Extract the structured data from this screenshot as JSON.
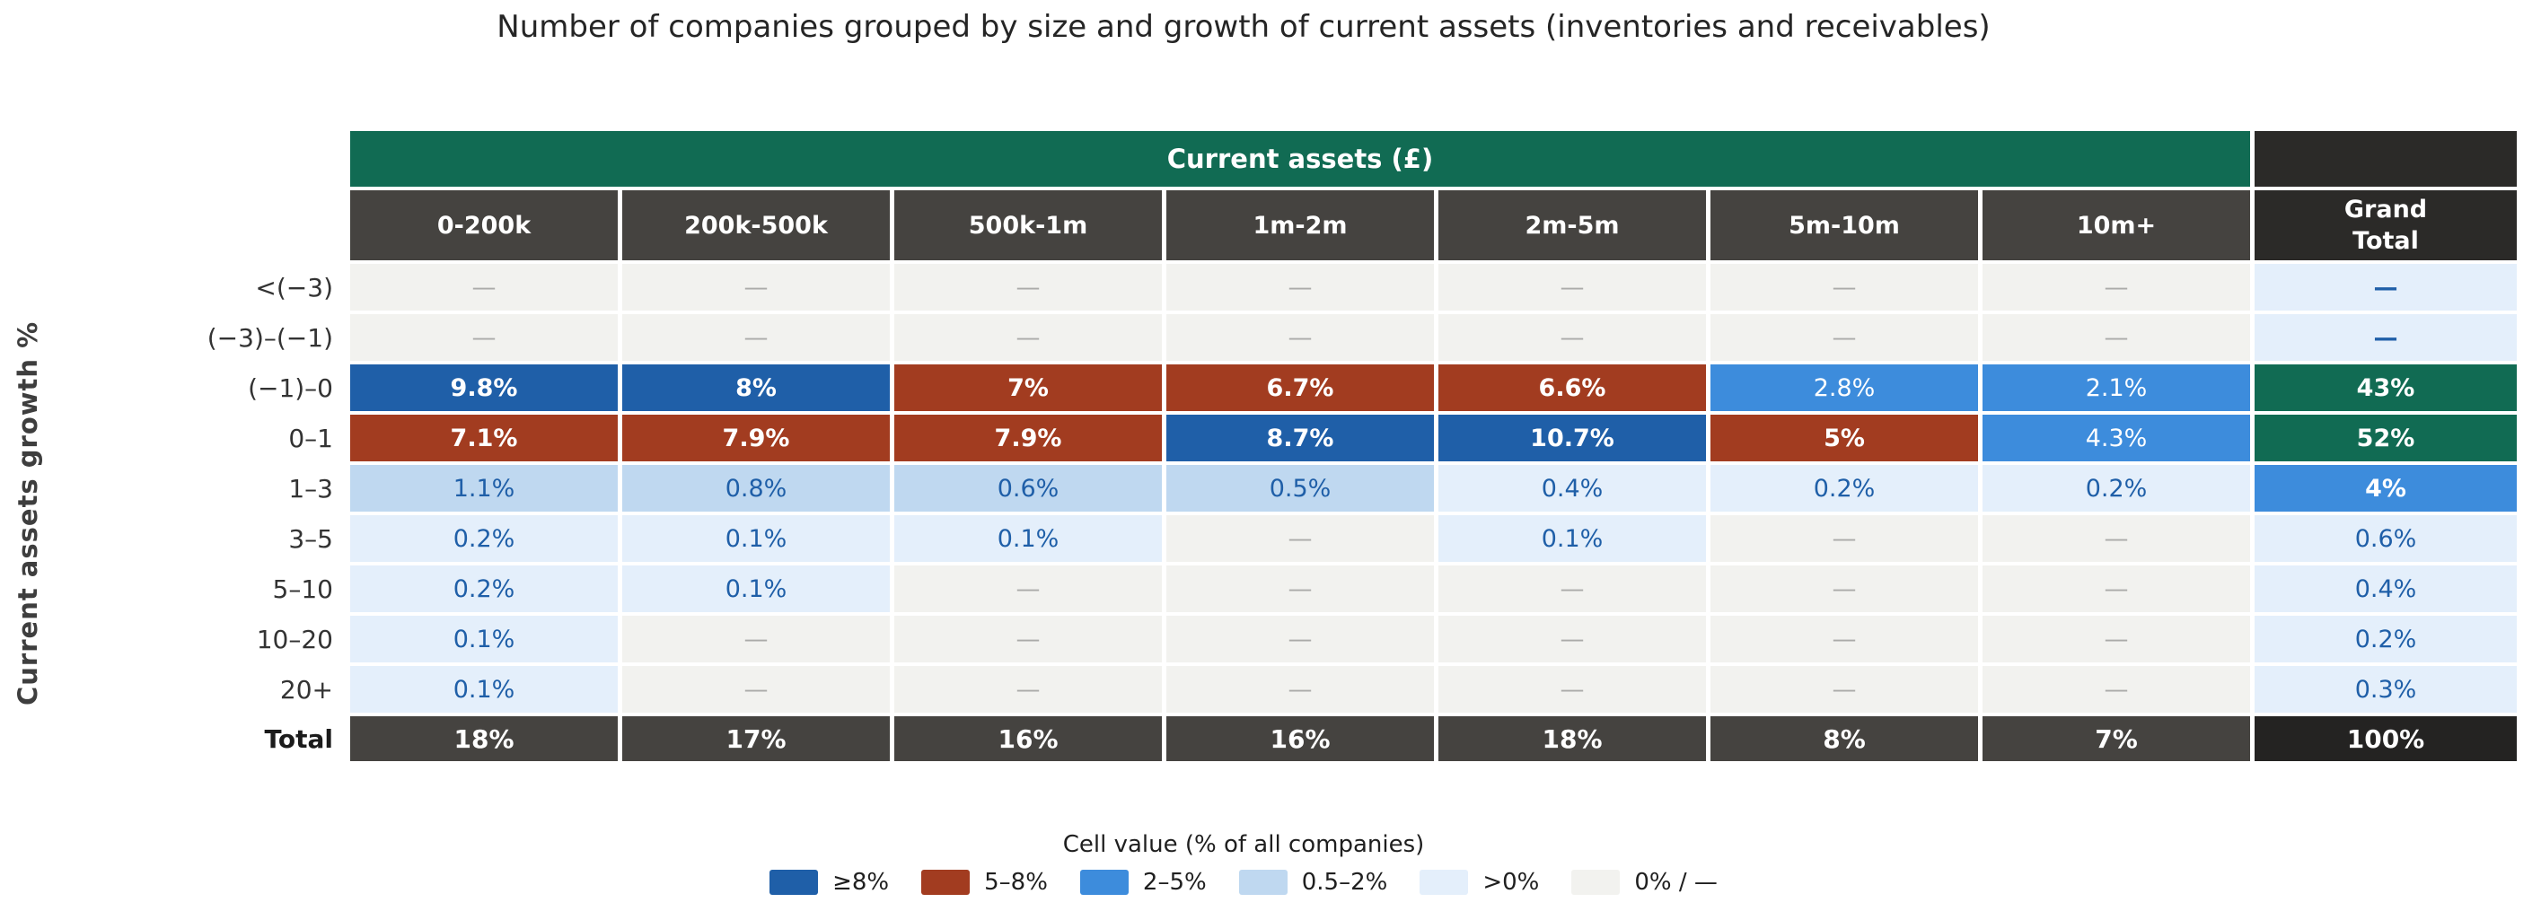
{
  "title": "Number of companies grouped by size and growth of current assets (inventories and receivables)",
  "y_axis_label": "Current assets growth %",
  "table": {
    "group_header": "Current assets (£)",
    "columns": [
      "0-200k",
      "200k-500k",
      "500k-1m",
      "1m-2m",
      "2m-5m",
      "5m-10m",
      "10m+"
    ],
    "grand_total_header": {
      "line1": "Grand",
      "line2": "Total"
    },
    "rows": [
      {
        "label": "<(−3)",
        "cells": [
          {
            "value": "—",
            "cat": "zero"
          },
          {
            "value": "—",
            "cat": "zero"
          },
          {
            "value": "—",
            "cat": "zero"
          },
          {
            "value": "—",
            "cat": "zero"
          },
          {
            "value": "—",
            "cat": "zero"
          },
          {
            "value": "—",
            "cat": "zero"
          },
          {
            "value": "—",
            "cat": "zero"
          },
          {
            "value": "—",
            "cat": "gt0",
            "bold": true
          }
        ]
      },
      {
        "label": "(−3)–(−1)",
        "cells": [
          {
            "value": "—",
            "cat": "zero"
          },
          {
            "value": "—",
            "cat": "zero"
          },
          {
            "value": "—",
            "cat": "zero"
          },
          {
            "value": "—",
            "cat": "zero"
          },
          {
            "value": "—",
            "cat": "zero"
          },
          {
            "value": "—",
            "cat": "zero"
          },
          {
            "value": "—",
            "cat": "zero"
          },
          {
            "value": "—",
            "cat": "gt0",
            "bold": true
          }
        ]
      },
      {
        "label": "(−1)–0",
        "cells": [
          {
            "value": "9.8%",
            "cat": "ge8"
          },
          {
            "value": "8%",
            "cat": "ge8"
          },
          {
            "value": "7%",
            "cat": "58"
          },
          {
            "value": "6.7%",
            "cat": "58"
          },
          {
            "value": "6.6%",
            "cat": "58"
          },
          {
            "value": "2.8%",
            "cat": "25"
          },
          {
            "value": "2.1%",
            "cat": "25"
          },
          {
            "value": "43%",
            "cat": "green"
          }
        ]
      },
      {
        "label": "0–1",
        "cells": [
          {
            "value": "7.1%",
            "cat": "58"
          },
          {
            "value": "7.9%",
            "cat": "58"
          },
          {
            "value": "7.9%",
            "cat": "58"
          },
          {
            "value": "8.7%",
            "cat": "ge8"
          },
          {
            "value": "10.7%",
            "cat": "ge8"
          },
          {
            "value": "5%",
            "cat": "58"
          },
          {
            "value": "4.3%",
            "cat": "25"
          },
          {
            "value": "52%",
            "cat": "green"
          }
        ]
      },
      {
        "label": "1–3",
        "cells": [
          {
            "value": "1.1%",
            "cat": "052"
          },
          {
            "value": "0.8%",
            "cat": "052"
          },
          {
            "value": "0.6%",
            "cat": "052"
          },
          {
            "value": "0.5%",
            "cat": "052"
          },
          {
            "value": "0.4%",
            "cat": "gt0"
          },
          {
            "value": "0.2%",
            "cat": "gt0"
          },
          {
            "value": "0.2%",
            "cat": "gt0"
          },
          {
            "value": "4%",
            "cat": "25",
            "bold": true
          }
        ]
      },
      {
        "label": "3–5",
        "cells": [
          {
            "value": "0.2%",
            "cat": "gt0"
          },
          {
            "value": "0.1%",
            "cat": "gt0"
          },
          {
            "value": "0.1%",
            "cat": "gt0"
          },
          {
            "value": "—",
            "cat": "zero"
          },
          {
            "value": "0.1%",
            "cat": "gt0"
          },
          {
            "value": "—",
            "cat": "zero"
          },
          {
            "value": "—",
            "cat": "zero"
          },
          {
            "value": "0.6%",
            "cat": "gt0"
          }
        ]
      },
      {
        "label": "5–10",
        "cells": [
          {
            "value": "0.2%",
            "cat": "gt0"
          },
          {
            "value": "0.1%",
            "cat": "gt0"
          },
          {
            "value": "—",
            "cat": "zero"
          },
          {
            "value": "—",
            "cat": "zero"
          },
          {
            "value": "—",
            "cat": "zero"
          },
          {
            "value": "—",
            "cat": "zero"
          },
          {
            "value": "—",
            "cat": "zero"
          },
          {
            "value": "0.4%",
            "cat": "gt0"
          }
        ]
      },
      {
        "label": "10–20",
        "cells": [
          {
            "value": "0.1%",
            "cat": "gt0"
          },
          {
            "value": "—",
            "cat": "zero"
          },
          {
            "value": "—",
            "cat": "zero"
          },
          {
            "value": "—",
            "cat": "zero"
          },
          {
            "value": "—",
            "cat": "zero"
          },
          {
            "value": "—",
            "cat": "zero"
          },
          {
            "value": "—",
            "cat": "zero"
          },
          {
            "value": "0.2%",
            "cat": "gt0"
          }
        ]
      },
      {
        "label": "20+",
        "cells": [
          {
            "value": "0.1%",
            "cat": "gt0"
          },
          {
            "value": "—",
            "cat": "zero"
          },
          {
            "value": "—",
            "cat": "zero"
          },
          {
            "value": "—",
            "cat": "zero"
          },
          {
            "value": "—",
            "cat": "zero"
          },
          {
            "value": "—",
            "cat": "zero"
          },
          {
            "value": "—",
            "cat": "zero"
          },
          {
            "value": "0.3%",
            "cat": "gt0"
          }
        ]
      }
    ],
    "total": {
      "label": "Total",
      "cells": [
        "18%",
        "17%",
        "16%",
        "16%",
        "18%",
        "8%",
        "7%"
      ],
      "grand": "100%"
    }
  },
  "legend": {
    "title": "Cell value (% of all companies)",
    "items": [
      {
        "label": "≥8%",
        "color": "#1f5fa8"
      },
      {
        "label": "5–8%",
        "color": "#a23c20"
      },
      {
        "label": "2–5%",
        "color": "#3d8cdc"
      },
      {
        "label": "0.5–2%",
        "color": "#bfd8f0"
      },
      {
        "label": ">0%",
        "color": "#e4effb"
      },
      {
        "label": "0% / —",
        "color": "#f2f2ef"
      }
    ]
  },
  "colors": {
    "group_header_green": "#116b53",
    "column_header_gray": "#454340",
    "grand_total_black": "#2b2a28",
    "grand_total_cell_black": "#242322",
    "value_text_blue": "#1f5fa8",
    "dash_gray": "#ababa9"
  },
  "chart_data": {
    "type": "heatmap",
    "title": "Number of companies grouped by size and growth of current assets (inventories and receivables)",
    "xlabel": "Current assets (£)",
    "ylabel": "Current assets growth %",
    "x_categories": [
      "0-200k",
      "200k-500k",
      "500k-1m",
      "1m-2m",
      "2m-5m",
      "5m-10m",
      "10m+"
    ],
    "y_categories": [
      "<(−3)",
      "(−3)–(−1)",
      "(−1)–0",
      "0–1",
      "1–3",
      "3–5",
      "5–10",
      "10–20",
      "20+"
    ],
    "values_pct": [
      [
        null,
        null,
        null,
        null,
        null,
        null,
        null
      ],
      [
        null,
        null,
        null,
        null,
        null,
        null,
        null
      ],
      [
        9.8,
        8,
        7,
        6.7,
        6.6,
        2.8,
        2.1
      ],
      [
        7.1,
        7.9,
        7.9,
        8.7,
        10.7,
        5,
        4.3
      ],
      [
        1.1,
        0.8,
        0.6,
        0.5,
        0.4,
        0.2,
        0.2
      ],
      [
        0.2,
        0.1,
        0.1,
        null,
        0.1,
        null,
        null
      ],
      [
        0.2,
        0.1,
        null,
        null,
        null,
        null,
        null
      ],
      [
        0.1,
        null,
        null,
        null,
        null,
        null,
        null
      ],
      [
        0.1,
        null,
        null,
        null,
        null,
        null,
        null
      ]
    ],
    "row_grand_totals_pct": [
      null,
      null,
      43,
      52,
      4,
      0.6,
      0.4,
      0.2,
      0.3
    ],
    "column_totals_pct": [
      18,
      17,
      16,
      16,
      18,
      8,
      7
    ],
    "grand_total_pct": 100,
    "legend_bins": [
      "≥8%",
      "5–8%",
      "2–5%",
      "0.5–2%",
      ">0%",
      "0% / —"
    ],
    "legend_position": "bottom-center",
    "grid": false
  }
}
